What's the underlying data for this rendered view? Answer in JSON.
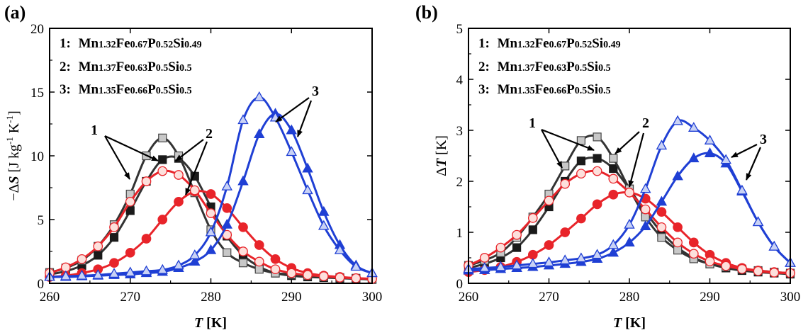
{
  "colors": {
    "black_line": "#333333",
    "black_fill": "#1a1a1a",
    "gray_fill": "#c8c8c8",
    "red": "#e8242a",
    "red_open_fill": "#fde0dc",
    "blue": "#1f3fd4",
    "blue_open_fill": "#c9d2f5"
  },
  "chart_data": [
    {
      "type": "line",
      "panel_label": "(a)",
      "title": "",
      "xlabel": {
        "italic": "T",
        "rest": " [K]"
      },
      "ylabel": {
        "prefix": "−Δ",
        "italic": "S",
        "rest": " [J  kg",
        "sup1": "-1",
        "mid": "  K",
        "sup2": "-1",
        "end": "]"
      },
      "xlim": [
        260,
        300
      ],
      "ylim": [
        0,
        20
      ],
      "xticks": [
        "260",
        "270",
        "280",
        "290",
        "300"
      ],
      "yticks": [
        "0",
        "5",
        "10",
        "15",
        "20"
      ],
      "legend": [
        {
          "num": "1:",
          "parts": [
            [
              "Mn",
              false
            ],
            [
              "1.32",
              true
            ],
            [
              "Fe",
              false
            ],
            [
              "0.67",
              true
            ],
            [
              "P",
              false
            ],
            [
              "0.52",
              true
            ],
            [
              "Si",
              false
            ],
            [
              "0.49",
              true
            ]
          ]
        },
        {
          "num": "2:",
          "parts": [
            [
              "Mn",
              false
            ],
            [
              "1.37",
              true
            ],
            [
              "Fe",
              false
            ],
            [
              "0.63",
              true
            ],
            [
              "P",
              false
            ],
            [
              "0.5",
              true
            ],
            [
              "Si",
              false
            ],
            [
              "0.5",
              true
            ]
          ]
        },
        {
          "num": "3:",
          "parts": [
            [
              "Mn",
              false
            ],
            [
              "1.35",
              true
            ],
            [
              "Fe",
              false
            ],
            [
              "0.66",
              true
            ],
            [
              "P",
              false
            ],
            [
              "0.5",
              true
            ],
            [
              "Si",
              false
            ],
            [
              "0.5",
              true
            ]
          ]
        }
      ],
      "annotations": [
        "1",
        "2",
        "3"
      ],
      "series": [
        {
          "name": "1",
          "color": "black",
          "marker": "square",
          "fill": "solid",
          "x": [
            260,
            262,
            264,
            266,
            268,
            270,
            272,
            274,
            276,
            278,
            280,
            282,
            284,
            286,
            288,
            290,
            292,
            294,
            296,
            298,
            300
          ],
          "y": [
            0.7,
            0.95,
            1.4,
            2.2,
            3.6,
            5.7,
            8.0,
            9.7,
            9.8,
            8.4,
            6.0,
            3.7,
            2.2,
            1.3,
            0.8,
            0.6,
            0.5,
            0.45,
            0.4,
            0.35,
            0.3
          ]
        },
        {
          "name": "1",
          "color": "black",
          "marker": "square",
          "fill": "open",
          "x": [
            260,
            262,
            264,
            266,
            268,
            270,
            272,
            274,
            276,
            278,
            280,
            282,
            284,
            286,
            288,
            290,
            292,
            294,
            296,
            298,
            300
          ],
          "y": [
            0.85,
            1.2,
            1.8,
            2.9,
            4.6,
            7.0,
            10.0,
            11.4,
            10.0,
            7.1,
            4.2,
            2.4,
            1.6,
            1.1,
            0.8,
            0.7,
            0.6,
            0.5,
            0.45,
            0.4,
            0.3
          ]
        },
        {
          "name": "2",
          "color": "red",
          "marker": "circle",
          "fill": "solid",
          "x": [
            260,
            262,
            264,
            266,
            268,
            270,
            272,
            274,
            276,
            278,
            280,
            282,
            284,
            286,
            288,
            290,
            292,
            294,
            296,
            298,
            300
          ],
          "y": [
            0.5,
            0.6,
            0.8,
            1.1,
            1.6,
            2.4,
            3.5,
            5.0,
            6.4,
            7.2,
            7.0,
            5.9,
            4.4,
            3.0,
            1.9,
            1.2,
            0.8,
            0.6,
            0.5,
            0.4,
            0.35
          ]
        },
        {
          "name": "2",
          "color": "red",
          "marker": "circle",
          "fill": "open",
          "x": [
            260,
            262,
            264,
            266,
            268,
            270,
            272,
            274,
            276,
            278,
            280,
            282,
            284,
            286,
            288,
            290,
            292,
            294,
            296,
            298,
            300
          ],
          "y": [
            0.8,
            1.25,
            1.9,
            2.9,
            4.4,
            6.4,
            8.0,
            8.8,
            8.5,
            7.3,
            5.5,
            3.8,
            2.5,
            1.7,
            1.1,
            0.8,
            0.65,
            0.55,
            0.45,
            0.4,
            0.35
          ]
        },
        {
          "name": "3",
          "color": "blue",
          "marker": "triangle",
          "fill": "solid",
          "x": [
            260,
            262,
            264,
            266,
            268,
            270,
            272,
            274,
            276,
            278,
            280,
            282,
            284,
            286,
            288,
            290,
            292,
            294,
            296,
            298,
            300
          ],
          "y": [
            0.5,
            0.5,
            0.55,
            0.6,
            0.65,
            0.7,
            0.8,
            0.9,
            1.2,
            1.7,
            2.6,
            4.6,
            8.0,
            11.7,
            13.3,
            12.0,
            9.0,
            5.6,
            3.0,
            1.4,
            0.8
          ]
        },
        {
          "name": "3",
          "color": "blue",
          "marker": "triangle",
          "fill": "open",
          "x": [
            260,
            262,
            264,
            266,
            268,
            270,
            272,
            274,
            276,
            278,
            280,
            282,
            284,
            286,
            288,
            290,
            292,
            294,
            296,
            298,
            300
          ],
          "y": [
            0.5,
            0.55,
            0.6,
            0.65,
            0.75,
            0.85,
            0.95,
            1.05,
            1.4,
            2.2,
            4.0,
            7.6,
            12.8,
            14.6,
            13.0,
            10.3,
            7.3,
            4.5,
            2.6,
            1.3,
            0.8
          ]
        }
      ]
    },
    {
      "type": "line",
      "panel_label": "(b)",
      "title": "",
      "xlabel": {
        "italic": "T",
        "rest": " [K]"
      },
      "ylabel": {
        "prefix": "Δ",
        "italic": "T",
        "rest": " [K]",
        "sup1": "",
        "mid": "",
        "sup2": "",
        "end": ""
      },
      "xlim": [
        260,
        300
      ],
      "ylim": [
        0,
        5
      ],
      "xticks": [
        "260",
        "270",
        "280",
        "290",
        "300"
      ],
      "yticks": [
        "0",
        "1",
        "2",
        "3",
        "4",
        "5"
      ],
      "legend": [
        {
          "num": "1:",
          "parts": [
            [
              "Mn",
              false
            ],
            [
              "1.32",
              true
            ],
            [
              "Fe",
              false
            ],
            [
              "0.67",
              true
            ],
            [
              "P",
              false
            ],
            [
              "0.52",
              true
            ],
            [
              "Si",
              false
            ],
            [
              "0.49",
              true
            ]
          ]
        },
        {
          "num": "2:",
          "parts": [
            [
              "Mn",
              false
            ],
            [
              "1.37",
              true
            ],
            [
              "Fe",
              false
            ],
            [
              "0.63",
              true
            ],
            [
              "P",
              false
            ],
            [
              "0.5",
              true
            ],
            [
              "Si",
              false
            ],
            [
              "0.5",
              true
            ]
          ]
        },
        {
          "num": "3:",
          "parts": [
            [
              "Mn",
              false
            ],
            [
              "1.35",
              true
            ],
            [
              "Fe",
              false
            ],
            [
              "0.66",
              true
            ],
            [
              "P",
              false
            ],
            [
              "0.5",
              true
            ],
            [
              "Si",
              false
            ],
            [
              "0.5",
              true
            ]
          ]
        }
      ],
      "annotations": [
        "1",
        "2",
        "3"
      ],
      "series": [
        {
          "name": "1",
          "color": "black",
          "marker": "square",
          "fill": "solid",
          "x": [
            260,
            262,
            264,
            266,
            268,
            270,
            272,
            274,
            276,
            278,
            280,
            282,
            284,
            286,
            288,
            290,
            292,
            294,
            296,
            298,
            300
          ],
          "y": [
            0.3,
            0.38,
            0.5,
            0.7,
            1.05,
            1.5,
            2.0,
            2.4,
            2.45,
            2.25,
            1.85,
            1.4,
            1.0,
            0.7,
            0.5,
            0.38,
            0.3,
            0.25,
            0.22,
            0.2,
            0.18
          ]
        },
        {
          "name": "1",
          "color": "black",
          "marker": "square",
          "fill": "open",
          "x": [
            260,
            262,
            264,
            266,
            268,
            270,
            272,
            274,
            276,
            278,
            280,
            282,
            284,
            286,
            288,
            290,
            292,
            294,
            296,
            298,
            300
          ],
          "y": [
            0.35,
            0.45,
            0.6,
            0.9,
            1.3,
            1.75,
            2.3,
            2.8,
            2.87,
            2.45,
            1.85,
            1.3,
            0.9,
            0.65,
            0.48,
            0.38,
            0.32,
            0.28,
            0.25,
            0.22,
            0.2
          ]
        },
        {
          "name": "2",
          "color": "red",
          "marker": "circle",
          "fill": "solid",
          "x": [
            260,
            262,
            264,
            266,
            268,
            270,
            272,
            274,
            276,
            278,
            280,
            282,
            284,
            286,
            288,
            290,
            292,
            294,
            296,
            298,
            300
          ],
          "y": [
            0.22,
            0.26,
            0.32,
            0.42,
            0.56,
            0.75,
            1.0,
            1.27,
            1.55,
            1.74,
            1.78,
            1.66,
            1.4,
            1.1,
            0.8,
            0.56,
            0.4,
            0.3,
            0.25,
            0.22,
            0.2
          ]
        },
        {
          "name": "2",
          "color": "red",
          "marker": "circle",
          "fill": "open",
          "x": [
            260,
            262,
            264,
            266,
            268,
            270,
            272,
            274,
            276,
            278,
            280,
            282,
            284,
            286,
            288,
            290,
            292,
            294,
            296,
            298,
            300
          ],
          "y": [
            0.35,
            0.5,
            0.7,
            0.95,
            1.28,
            1.62,
            1.95,
            2.15,
            2.2,
            2.05,
            1.78,
            1.45,
            1.1,
            0.8,
            0.58,
            0.43,
            0.34,
            0.28,
            0.24,
            0.21,
            0.2
          ]
        },
        {
          "name": "3",
          "color": "blue",
          "marker": "triangle",
          "fill": "solid",
          "x": [
            260,
            262,
            264,
            266,
            268,
            270,
            272,
            274,
            276,
            278,
            280,
            282,
            284,
            286,
            288,
            290,
            292,
            294,
            296,
            298,
            300
          ],
          "y": [
            0.25,
            0.26,
            0.28,
            0.3,
            0.32,
            0.35,
            0.38,
            0.42,
            0.48,
            0.6,
            0.8,
            1.12,
            1.6,
            2.1,
            2.45,
            2.55,
            2.35,
            1.8,
            1.2,
            0.72,
            0.4
          ]
        },
        {
          "name": "3",
          "color": "blue",
          "marker": "triangle",
          "fill": "open",
          "x": [
            260,
            262,
            264,
            266,
            268,
            270,
            272,
            274,
            276,
            278,
            280,
            282,
            284,
            286,
            288,
            290,
            292,
            294,
            296,
            298,
            300
          ],
          "y": [
            0.28,
            0.3,
            0.32,
            0.35,
            0.38,
            0.41,
            0.45,
            0.49,
            0.56,
            0.75,
            1.15,
            1.85,
            2.7,
            3.18,
            3.05,
            2.8,
            2.42,
            1.82,
            1.2,
            0.72,
            0.4
          ]
        }
      ]
    }
  ]
}
